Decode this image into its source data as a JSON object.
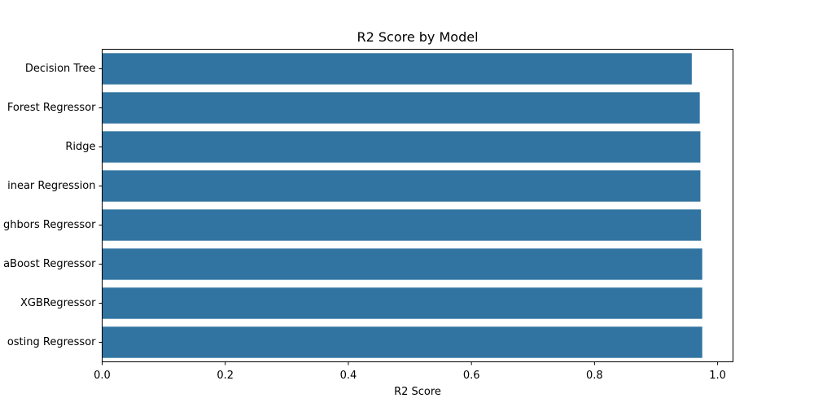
{
  "chart_data": {
    "type": "bar",
    "orientation": "horizontal",
    "title": "R2 Score by Model",
    "xlabel": "R2 Score",
    "ylabel": "",
    "categories": [
      "Decision Tree",
      "Forest Regressor",
      "Ridge",
      "inear Regression",
      "ghbors Regressor",
      "aBoost Regressor",
      "XGBRegressor",
      "osting Regressor"
    ],
    "values": [
      0.958,
      0.971,
      0.972,
      0.972,
      0.973,
      0.975,
      0.975,
      0.975
    ],
    "xlim": [
      0,
      1.025
    ],
    "xticks": [
      0.0,
      0.2,
      0.4,
      0.6,
      0.8,
      1.0
    ],
    "xtick_labels": [
      "0.0",
      "0.2",
      "0.4",
      "0.6",
      "0.8",
      "1.0"
    ],
    "bar_color": "#3274a1",
    "grid": false,
    "legend": "none"
  }
}
